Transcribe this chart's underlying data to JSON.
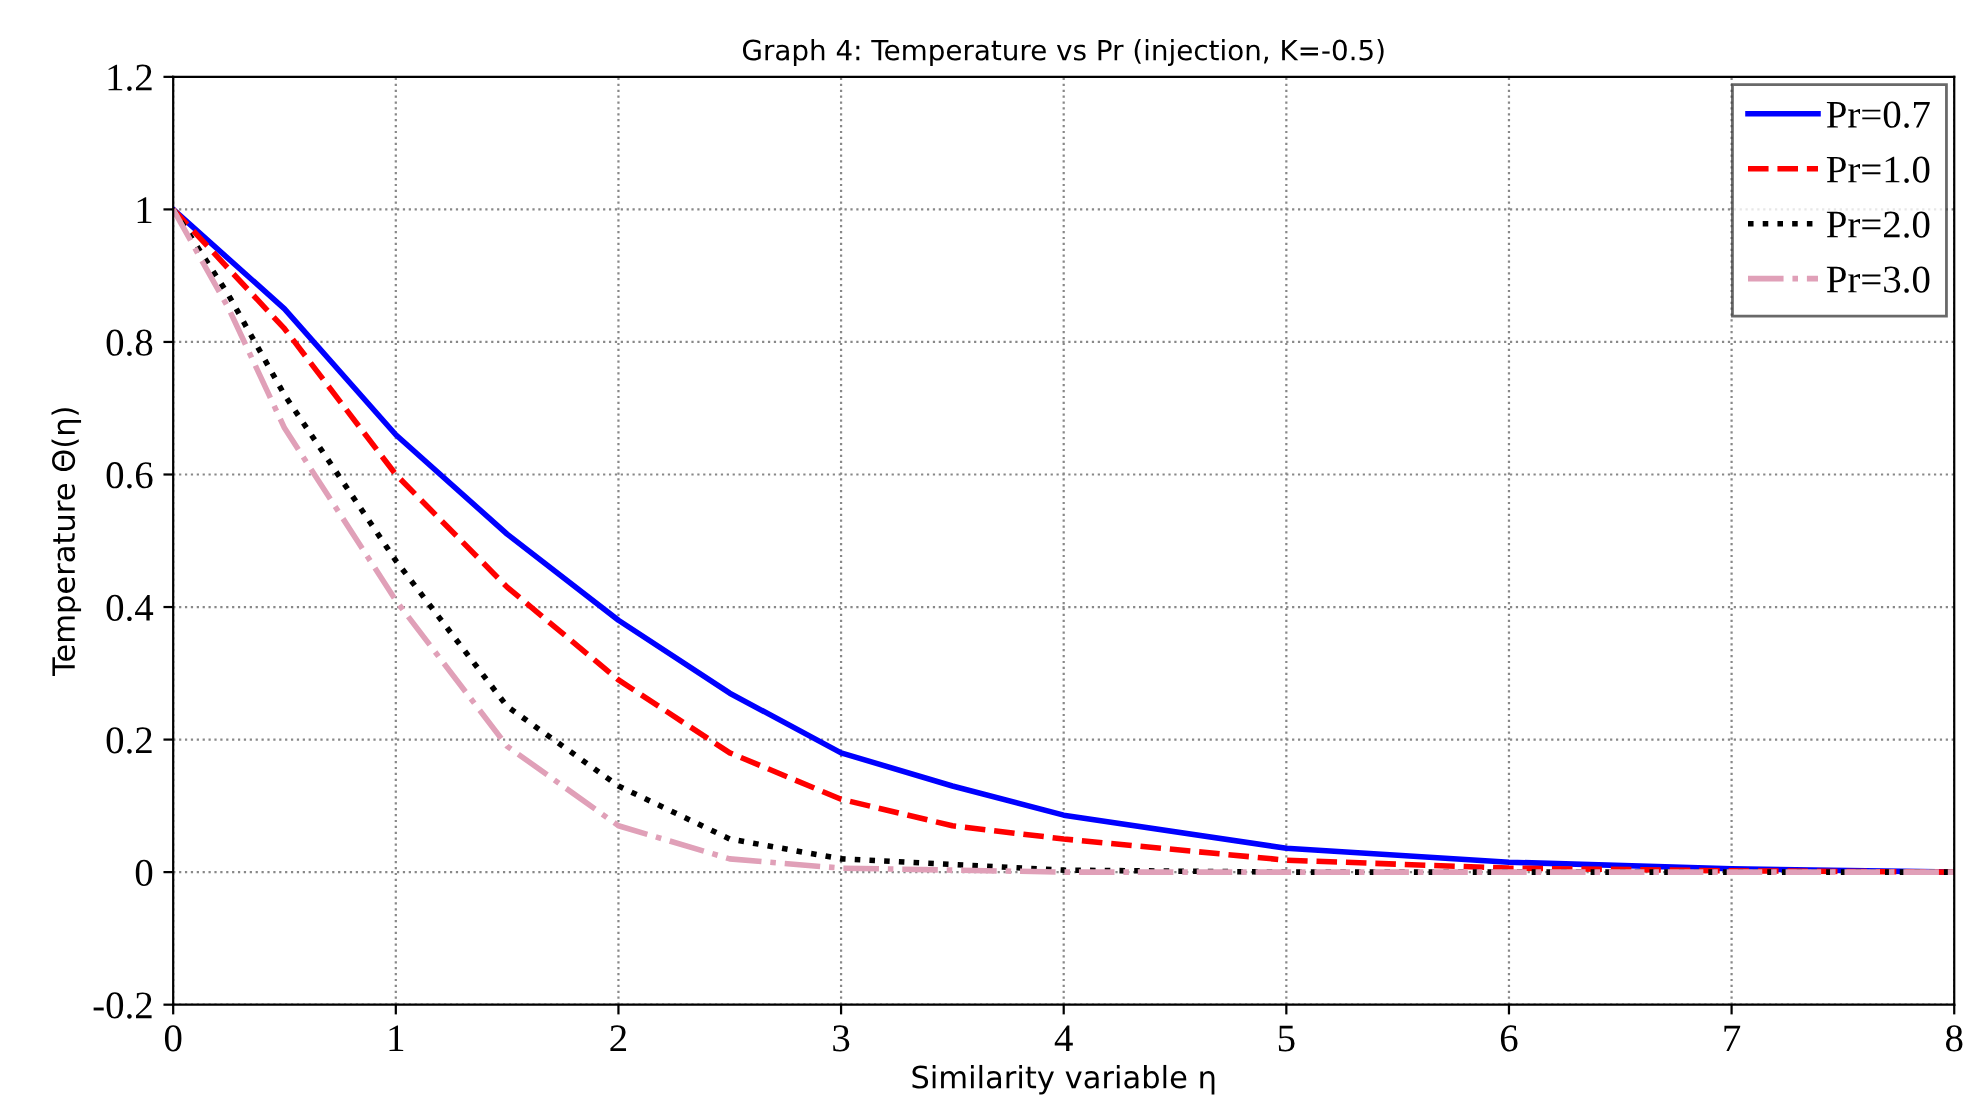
{
  "chart_data": {
    "type": "line",
    "title": "Graph 4: Temperature vs Pr (injection, K=-0.5)",
    "xlabel": "Similarity variable η",
    "ylabel": "Temperature Θ(η)",
    "xlim": [
      0,
      8
    ],
    "ylim": [
      -0.2,
      1.2
    ],
    "xticks": [
      0,
      1,
      2,
      3,
      4,
      5,
      6,
      7,
      8
    ],
    "yticks": [
      -0.2,
      0,
      0.2,
      0.4,
      0.6,
      0.8,
      1,
      1.2
    ],
    "grid": true,
    "legend": "top right",
    "marker": "none",
    "series": [
      {
        "name": "Pr=0.7",
        "color": "#0000ff",
        "line_style": "solid",
        "x": [
          0,
          0.5,
          1,
          1.5,
          2,
          2.5,
          3,
          3.5,
          4,
          5,
          6,
          7,
          8
        ],
        "values": [
          1,
          0.85,
          0.66,
          0.51,
          0.38,
          0.27,
          0.18,
          0.13,
          0.086,
          0.036,
          0.015,
          0.005,
          0
        ]
      },
      {
        "name": "Pr=1.0",
        "color": "#ff0000",
        "line_style": "dashed",
        "x": [
          0,
          0.5,
          1,
          1.5,
          2,
          2.5,
          3,
          3.5,
          4,
          5,
          6,
          7,
          8
        ],
        "values": [
          1,
          0.82,
          0.6,
          0.43,
          0.29,
          0.18,
          0.11,
          0.07,
          0.05,
          0.018,
          0.006,
          0.002,
          0
        ]
      },
      {
        "name": "Pr=2.0",
        "color": "#000000",
        "line_style": "dotted",
        "x": [
          0,
          0.25,
          0.5,
          1,
          1.5,
          2,
          2.5,
          3,
          4,
          5,
          6,
          7,
          8
        ],
        "values": [
          1,
          0.87,
          0.72,
          0.47,
          0.25,
          0.13,
          0.05,
          0.02,
          0.003,
          0,
          0,
          0,
          0
        ]
      },
      {
        "name": "Pr=3.0",
        "color": "#e0a0b8",
        "line_style": "dashdot",
        "x": [
          0,
          0.25,
          0.5,
          1,
          1.5,
          2,
          2.5,
          3,
          4,
          5,
          6,
          7,
          8
        ],
        "values": [
          1,
          0.85,
          0.67,
          0.41,
          0.19,
          0.07,
          0.02,
          0.006,
          0,
          0,
          0,
          0,
          0
        ]
      }
    ]
  }
}
